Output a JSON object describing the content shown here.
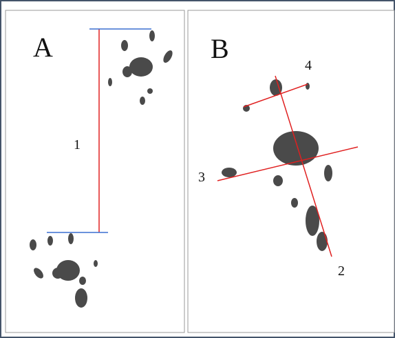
{
  "panels": [
    {
      "label": "A",
      "measurements": [
        "1"
      ]
    },
    {
      "label": "B",
      "measurements": [
        "2",
        "3",
        "4"
      ]
    }
  ]
}
